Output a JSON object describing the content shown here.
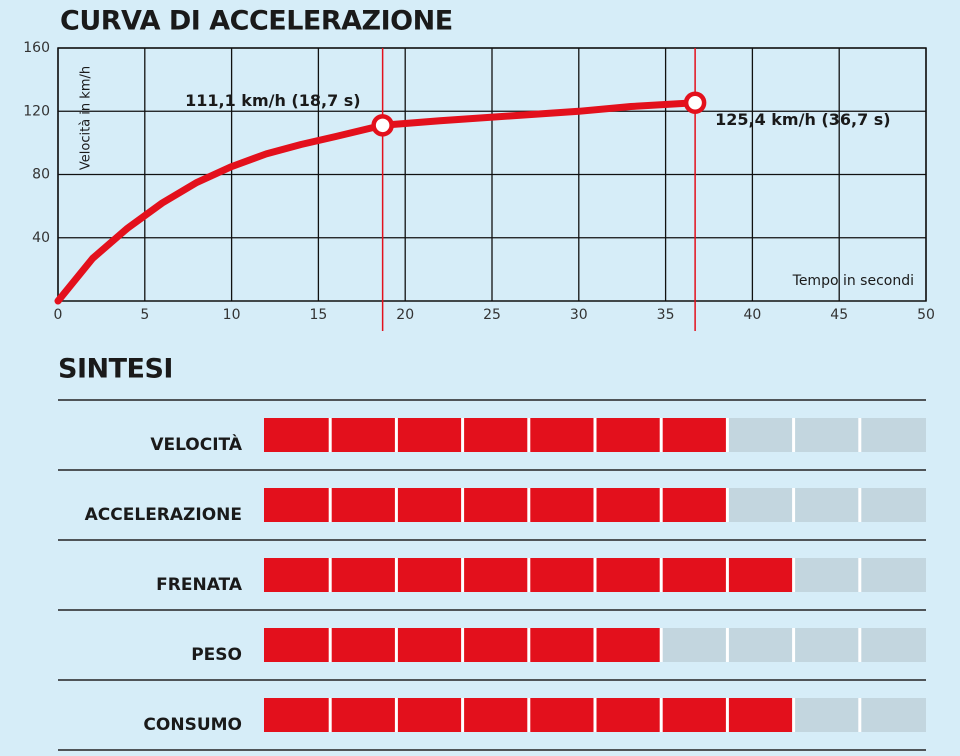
{
  "chart_data": [
    {
      "type": "line",
      "title": "CURVA DI ACCELERAZIONE",
      "y_label": "Velocità in km/h",
      "x_label": "Tempo in secondi",
      "x": [
        0,
        2,
        4,
        6,
        8,
        10,
        12,
        14,
        16,
        18.7,
        22,
        26,
        30,
        33,
        36.7
      ],
      "values": [
        0,
        27,
        46,
        62,
        75,
        85,
        93,
        99,
        104,
        111.1,
        114,
        117,
        120,
        123,
        125.4
      ],
      "color": "#e3101c",
      "xlim": [
        0,
        50
      ],
      "xticks": [
        0,
        5,
        10,
        15,
        20,
        25,
        30,
        35,
        40,
        45,
        50
      ],
      "ylim": [
        0,
        160
      ],
      "yticks": [
        40,
        80,
        120,
        160
      ],
      "grid": true,
      "annotations": [
        {
          "text": "111,1 km/h (18,7 s)",
          "x": 18.7,
          "y": 111.1
        },
        {
          "text": "125,4 km/h (36,7 s)",
          "x": 36.7,
          "y": 125.4
        }
      ]
    },
    {
      "type": "rating",
      "title": "SINTESI",
      "categories": [
        "VELOCITÀ",
        "ACCELERAZIONE",
        "FRENATA",
        "PESO",
        "CONSUMO"
      ],
      "values": [
        7,
        7,
        8,
        6,
        8
      ],
      "xlim": [
        0,
        10
      ],
      "color": "#e3101c"
    }
  ]
}
